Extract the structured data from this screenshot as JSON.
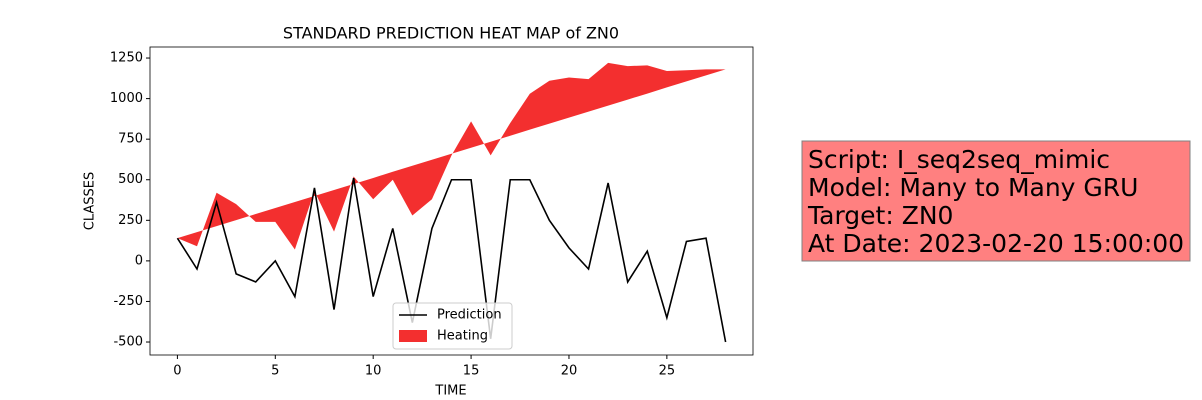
{
  "chart_data": {
    "type": "line",
    "title": "STANDARD PREDICTION HEAT MAP of ZN0",
    "x_label": "TIME",
    "y_label": "CLASSES",
    "x": [
      0,
      1,
      2,
      3,
      4,
      5,
      6,
      7,
      8,
      9,
      10,
      11,
      12,
      13,
      14,
      15,
      16,
      17,
      18,
      19,
      20,
      21,
      22,
      23,
      24,
      25,
      26,
      27,
      28
    ],
    "series": [
      {
        "name": "Prediction",
        "color": "#000000",
        "values": [
          140,
          -50,
          360,
          -80,
          -130,
          0,
          -220,
          450,
          -300,
          510,
          -220,
          200,
          -380,
          200,
          500,
          500,
          -480,
          500,
          500,
          250,
          80,
          -50,
          480,
          -130,
          60,
          -350,
          120,
          140,
          -500
        ]
      },
      {
        "name": "Heating",
        "color": "#f21818",
        "values": [
          140,
          90,
          420,
          350,
          240,
          240,
          70,
          430,
          180,
          520,
          380,
          500,
          280,
          380,
          650,
          860,
          650,
          850,
          1030,
          1110,
          1130,
          1120,
          1220,
          1200,
          1205,
          1170,
          1175,
          1180,
          1180
        ],
        "base": [
          140,
          177,
          214,
          251,
          289,
          326,
          363,
          400,
          437,
          474,
          511,
          549,
          586,
          623,
          660,
          697,
          734,
          771,
          809,
          846,
          883,
          920,
          957,
          994,
          1031,
          1069,
          1106,
          1143,
          1180
        ]
      }
    ],
    "xlim": [
      -1.4,
      29.4
    ],
    "ylim": [
      -580,
      1318
    ],
    "xticks": [
      0,
      5,
      10,
      15,
      20,
      25
    ],
    "yticks": [
      -500,
      -250,
      0,
      250,
      500,
      750,
      1000,
      1250
    ],
    "legend_position": "lower center",
    "annotation": [
      "Script: I_seq2seq_mimic",
      "Model: Many to Many GRU",
      "Target: ZN0",
      "At Date: 2023-02-20 15:00:00"
    ]
  }
}
